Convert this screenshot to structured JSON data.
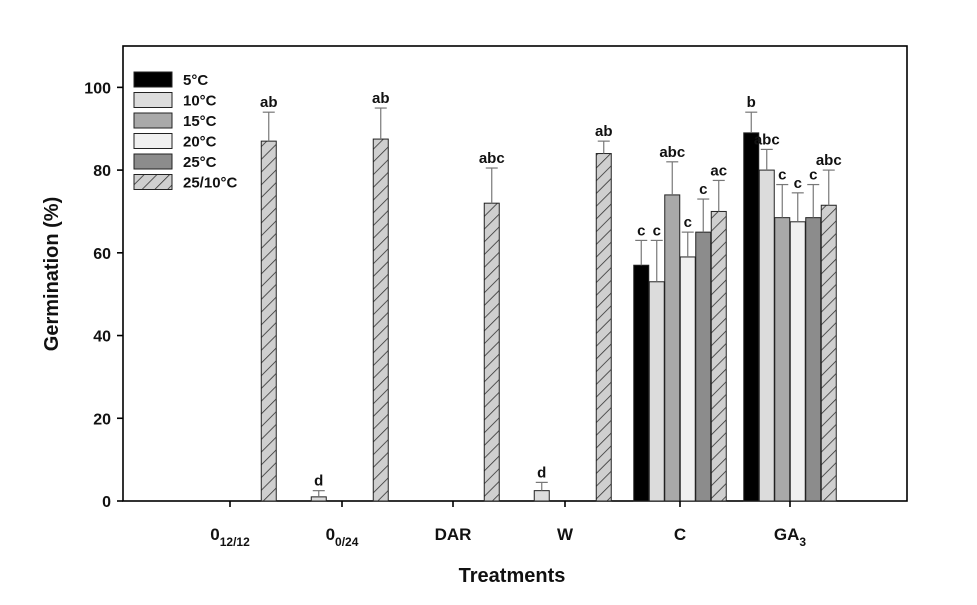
{
  "chart_data": {
    "type": "bar",
    "xlabel": "Treatments",
    "ylabel": "Germination (%)",
    "ylim": [
      0,
      110
    ],
    "yticks": [
      0,
      20,
      40,
      60,
      80,
      100
    ],
    "legend_position": "top-left",
    "grid": false,
    "categories": [
      {
        "base": "0",
        "sub": "12/12"
      },
      {
        "base": "0",
        "sub": "0/24"
      },
      {
        "base": "DAR",
        "sub": ""
      },
      {
        "base": "W",
        "sub": ""
      },
      {
        "base": "C",
        "sub": ""
      },
      {
        "base": "GA",
        "sub": "3"
      }
    ],
    "series": [
      {
        "name": "5°C",
        "fill": "#000000",
        "pattern": "solid",
        "values": [
          null,
          null,
          null,
          null,
          57,
          89
        ],
        "errors": [
          null,
          null,
          null,
          null,
          6,
          5
        ],
        "labels": [
          null,
          null,
          null,
          null,
          "c",
          "b"
        ]
      },
      {
        "name": "10°C",
        "fill": "#dcdcdc",
        "pattern": "solid",
        "values": [
          null,
          null,
          null,
          null,
          53,
          80
        ],
        "errors": [
          null,
          null,
          null,
          null,
          10,
          5
        ],
        "labels": [
          null,
          null,
          null,
          null,
          "c",
          "abc"
        ]
      },
      {
        "name": "15°C",
        "fill": "#a9a9a9",
        "pattern": "solid",
        "values": [
          null,
          null,
          null,
          null,
          74,
          68.5
        ],
        "errors": [
          null,
          null,
          null,
          null,
          8,
          8
        ],
        "labels": [
          null,
          null,
          null,
          null,
          "abc",
          "c"
        ]
      },
      {
        "name": "20°C",
        "fill": "#f0f0f0",
        "pattern": "solid",
        "values": [
          null,
          null,
          null,
          null,
          59,
          67.5
        ],
        "errors": [
          null,
          null,
          null,
          null,
          6,
          7
        ],
        "labels": [
          null,
          null,
          null,
          null,
          "c",
          "c"
        ]
      },
      {
        "name": "25°C",
        "fill": "#8c8c8c",
        "pattern": "solid",
        "values": [
          null,
          null,
          null,
          null,
          65,
          68.5
        ],
        "errors": [
          null,
          null,
          null,
          null,
          8,
          8
        ],
        "labels": [
          null,
          null,
          null,
          null,
          "c",
          "c"
        ]
      },
      {
        "name": "25/10°C",
        "fill": "#cfcfcf",
        "pattern": "hatched",
        "values": [
          87,
          87.5,
          72,
          84,
          70,
          71.5
        ],
        "errors": [
          7,
          7.5,
          8.5,
          3,
          7.5,
          8.5
        ],
        "labels": [
          "ab",
          "ab",
          "abc",
          "ab",
          "ac",
          "abc"
        ]
      }
    ],
    "extra_bars": [
      {
        "category_index": 1,
        "series_name": "10°C",
        "value": 1,
        "error": 1.5,
        "label": "d"
      },
      {
        "category_index": 3,
        "series_name": "10°C",
        "value": 2.5,
        "error": 2,
        "label": "d"
      }
    ]
  }
}
